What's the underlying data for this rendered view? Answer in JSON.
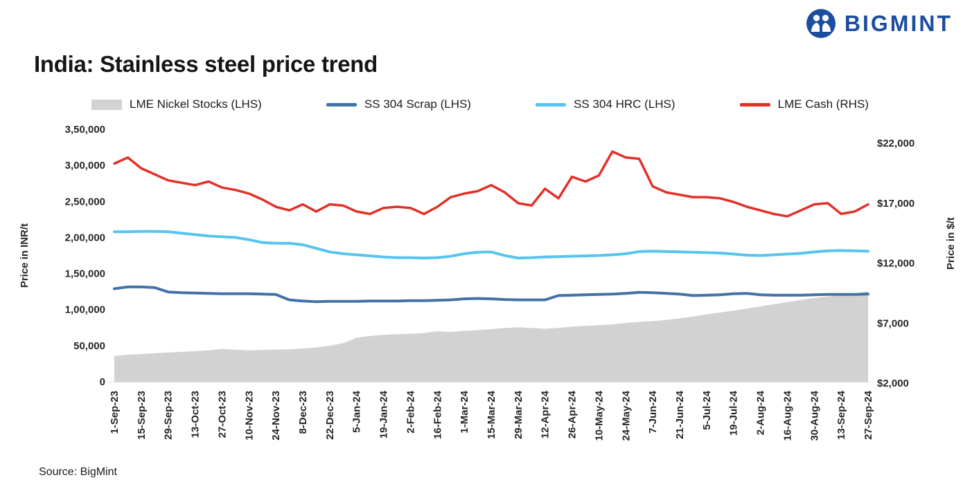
{
  "header": {
    "logo_text": "BIGMINT",
    "title": "India: Stainless steel price trend"
  },
  "footer": {
    "source": "Source: BigMint"
  },
  "brand": {
    "logo_blue": "#1b4da0"
  },
  "chart_data": {
    "type": "combo-area-line",
    "title": "India: Stainless steel price trend",
    "legend_position": "top",
    "grid": false,
    "left_axis": {
      "label": "Price in INR/t",
      "min": 0,
      "max": 350000,
      "ticks": [
        "0",
        "50,000",
        "1,00,000",
        "1,50,000",
        "2,00,000",
        "2,50,000",
        "3,00,000",
        "3,50,000"
      ]
    },
    "right_axis": {
      "label": "Price in $/t",
      "min": 2000,
      "max": 22000,
      "ticks": [
        "$2,000",
        "$7,000",
        "$12,000",
        "$17,000",
        "$22,000"
      ]
    },
    "x": [
      "1-Sep-23",
      "8-Sep-23",
      "15-Sep-23",
      "22-Sep-23",
      "29-Sep-23",
      "6-Oct-23",
      "13-Oct-23",
      "20-Oct-23",
      "27-Oct-23",
      "3-Nov-23",
      "10-Nov-23",
      "17-Nov-23",
      "24-Nov-23",
      "1-Dec-23",
      "8-Dec-23",
      "15-Dec-23",
      "22-Dec-23",
      "29-Dec-23",
      "5-Jan-24",
      "12-Jan-24",
      "19-Jan-24",
      "26-Jan-24",
      "2-Feb-24",
      "9-Feb-24",
      "16-Feb-24",
      "23-Feb-24",
      "1-Mar-24",
      "8-Mar-24",
      "15-Mar-24",
      "22-Mar-24",
      "29-Mar-24",
      "5-Apr-24",
      "12-Apr-24",
      "19-Apr-24",
      "26-Apr-24",
      "3-May-24",
      "10-May-24",
      "17-May-24",
      "24-May-24",
      "31-May-24",
      "7-Jun-24",
      "14-Jun-24",
      "21-Jun-24",
      "28-Jun-24",
      "5-Jul-24",
      "12-Jul-24",
      "19-Jul-24",
      "26-Jul-24",
      "2-Aug-24",
      "9-Aug-24",
      "16-Aug-24",
      "23-Aug-24",
      "30-Aug-24",
      "6-Sep-24",
      "13-Sep-24",
      "20-Sep-24",
      "27-Sep-24"
    ],
    "x_tick_labels": [
      "1-Sep-23",
      "15-Sep-23",
      "29-Sep-23",
      "13-Oct-23",
      "27-Oct-23",
      "10-Nov-23",
      "24-Nov-23",
      "8-Dec-23",
      "22-Dec-23",
      "5-Jan-24",
      "19-Jan-24",
      "2-Feb-24",
      "16-Feb-24",
      "1-Mar-24",
      "15-Mar-24",
      "29-Mar-24",
      "12-Apr-24",
      "26-Apr-24",
      "10-May-24",
      "24-May-24",
      "7-Jun-24",
      "21-Jun-24",
      "5-Jul-24",
      "19-Jul-24",
      "2-Aug-24",
      "16-Aug-24",
      "30-Aug-24",
      "13-Sep-24",
      "27-Sep-24"
    ],
    "series": [
      {
        "name": "LME Nickel Stocks (LHS)",
        "type": "area",
        "axis": "left",
        "color": "#d2d2d2",
        "values": [
          36000,
          37500,
          38500,
          39500,
          40500,
          41500,
          42500,
          43500,
          45500,
          44500,
          43500,
          44000,
          44500,
          45000,
          46000,
          47500,
          50000,
          53500,
          61000,
          63500,
          65000,
          66000,
          66500,
          67500,
          70000,
          69000,
          70500,
          71500,
          73000,
          74500,
          75500,
          74500,
          73500,
          74500,
          76500,
          77500,
          78500,
          79500,
          81500,
          83000,
          84000,
          85500,
          88000,
          90500,
          93500,
          96000,
          98500,
          101500,
          104500,
          107500,
          110500,
          113500,
          116000,
          118000,
          120000,
          122500,
          125500
        ]
      },
      {
        "name": "SS 304 Scrap (LHS)",
        "type": "line",
        "axis": "left",
        "color": "#4472a8",
        "width": 4,
        "values": [
          129000,
          131500,
          131500,
          130500,
          124500,
          123500,
          123000,
          122500,
          122000,
          122000,
          122000,
          121500,
          121000,
          113500,
          112000,
          111000,
          111500,
          111500,
          111500,
          112000,
          112000,
          112000,
          112500,
          112500,
          113000,
          113500,
          115000,
          115500,
          115000,
          114000,
          113500,
          113500,
          113500,
          119500,
          120000,
          120500,
          121000,
          121500,
          122500,
          124000,
          123500,
          122500,
          121500,
          119500,
          120000,
          120500,
          122000,
          122500,
          120500,
          120000,
          120000,
          120000,
          120500,
          121000,
          121000,
          121000,
          121500
        ]
      },
      {
        "name": "SS 304 HRC (LHS)",
        "type": "line",
        "axis": "left",
        "color": "#57c4ef",
        "width": 4,
        "values": [
          208000,
          208000,
          208500,
          208500,
          208000,
          206000,
          204000,
          202000,
          201000,
          200000,
          197000,
          193000,
          192000,
          192000,
          190000,
          185000,
          180000,
          177500,
          176000,
          174500,
          173000,
          172000,
          172000,
          171500,
          172000,
          174000,
          177500,
          179500,
          180000,
          175000,
          171500,
          172000,
          173000,
          173500,
          174000,
          174500,
          175000,
          176000,
          177500,
          180500,
          181000,
          180500,
          180000,
          179500,
          179000,
          178500,
          177000,
          175500,
          175000,
          176000,
          177000,
          178000,
          180000,
          181500,
          182000,
          181500,
          181000
        ]
      },
      {
        "name": "LME Cash (RHS)",
        "type": "line",
        "axis": "right",
        "color": "#e23028",
        "width": 3.5,
        "values": [
          20300,
          20800,
          19900,
          19400,
          18900,
          18700,
          18500,
          18800,
          18300,
          18100,
          17800,
          17300,
          16700,
          16400,
          16900,
          16300,
          16900,
          16800,
          16300,
          16100,
          16600,
          16700,
          16600,
          16100,
          16700,
          17500,
          17800,
          18000,
          18500,
          17900,
          17000,
          16800,
          18200,
          17400,
          19200,
          18800,
          19300,
          21300,
          20800,
          20700,
          18400,
          17900,
          17700,
          17500,
          17500,
          17400,
          17100,
          16700,
          16400,
          16100,
          15900,
          16400,
          16900,
          17000,
          16100,
          16300,
          16900
        ]
      }
    ]
  }
}
